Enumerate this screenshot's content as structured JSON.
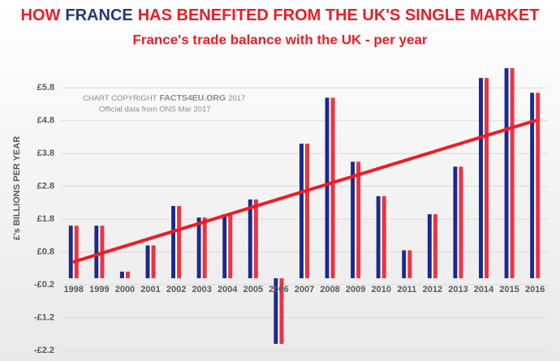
{
  "chart_data": {
    "type": "bar",
    "title": [
      "HOW",
      "FRANCE",
      "HAS BENEFITED FROM THE UK'S SINGLE MARKET"
    ],
    "subtitle": "France's trade balance with the UK - per year",
    "ylabel": "£'s BILLIONS PER YEAR",
    "copyright": [
      "CHART COPYRIGHT",
      "FACTS4EU.ORG",
      "2017"
    ],
    "source": "Official data from ONS Mar 2017",
    "categories": [
      "1998",
      "1999",
      "2000",
      "2001",
      "2002",
      "2003",
      "2004",
      "2005",
      "2006",
      "2007",
      "2008",
      "2009",
      "2010",
      "2011",
      "2012",
      "2013",
      "2014",
      "2015",
      "2016"
    ],
    "values": [
      1.6,
      1.6,
      0.2,
      1.0,
      2.2,
      1.85,
      1.95,
      2.4,
      -2.0,
      4.1,
      5.5,
      3.55,
      2.5,
      0.85,
      1.95,
      3.4,
      6.1,
      6.4,
      5.65
    ],
    "bar_colors": [
      "#1b2a8c",
      "#ee3340"
    ],
    "trendline": [
      0.5,
      4.8
    ],
    "trend_color": "#ee1c25",
    "ylim": [
      -2.3,
      6.5
    ],
    "yticks": [
      {
        "value": -2.2,
        "label": "-£2.2"
      },
      {
        "value": -1.2,
        "label": "-£1.2"
      },
      {
        "value": -0.2,
        "label": "-£0.2"
      },
      {
        "value": 0.8,
        "label": "£0.8"
      },
      {
        "value": 1.8,
        "label": "£1.8"
      },
      {
        "value": 2.8,
        "label": "£2.8"
      },
      {
        "value": 3.8,
        "label": "£3.8"
      },
      {
        "value": 4.8,
        "label": "£4.8"
      },
      {
        "value": 5.8,
        "label": "£5.8"
      }
    ],
    "grid": true
  }
}
